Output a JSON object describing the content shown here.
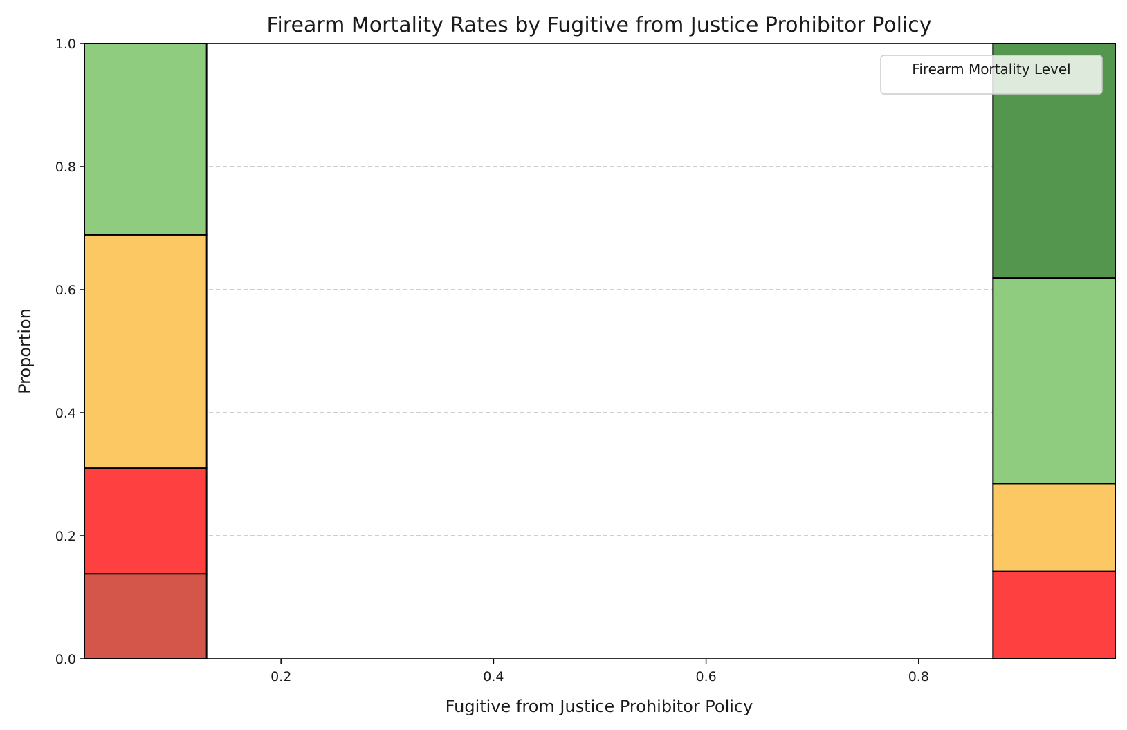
{
  "chart_data": {
    "type": "bar",
    "stacked": true,
    "title": "Firearm Mortality Rates by Fugitive from Justice Prohibitor Policy",
    "xlabel": "Fugitive from Justice Prohibitor Policy",
    "ylabel": "Proportion",
    "xlim": [
      0.015,
      0.985
    ],
    "ylim": [
      0,
      1
    ],
    "x_ticks": [
      0.2,
      0.4,
      0.6,
      0.8
    ],
    "y_ticks": [
      0.0,
      0.2,
      0.4,
      0.6,
      0.8,
      1.0
    ],
    "grid": "y-dashed",
    "bar_ranges": [
      [
        0.015,
        0.13
      ],
      [
        0.87,
        0.985
      ]
    ],
    "categories": [
      "0",
      "1"
    ],
    "series": [
      {
        "color": "#d4554a",
        "values": [
          0.138,
          0.0
        ]
      },
      {
        "color": "#ff4040",
        "values": [
          0.172,
          0.142
        ]
      },
      {
        "color": "#fbc864",
        "values": [
          0.379,
          0.143
        ]
      },
      {
        "color": "#8fcc80",
        "values": [
          0.311,
          0.334
        ]
      },
      {
        "color": "#55964f",
        "values": [
          0.0,
          0.381
        ]
      }
    ],
    "legend": {
      "title": "Firearm Mortality Level",
      "placement": "top-right"
    }
  }
}
